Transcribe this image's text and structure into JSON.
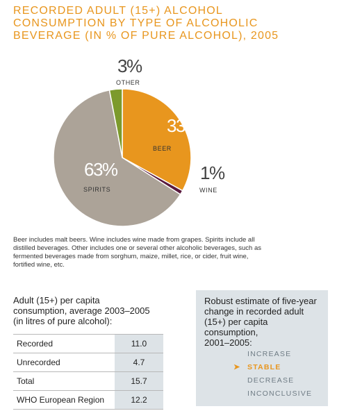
{
  "title_lines": [
    "RECORDED ADULT (15+) ALCOHOL",
    "CONSUMPTION BY TYPE OF ALCOHOLIC",
    "BEVERAGE (IN % OF PURE ALCOHOL), 2005"
  ],
  "chart_data": {
    "type": "pie",
    "title": "RECORDED ADULT (15+) ALCOHOL CONSUMPTION BY TYPE OF ALCOHOLIC BEVERAGE (IN % OF PURE ALCOHOL), 2005",
    "slices": [
      {
        "label": "BEER",
        "value": 33,
        "display": "33%",
        "color": "#e8961e"
      },
      {
        "label": "WINE",
        "value": 1,
        "display": "1%",
        "color": "#5a1a3e"
      },
      {
        "label": "SPIRITS",
        "value": 63,
        "display": "63%",
        "color": "#aca398"
      },
      {
        "label": "OTHER",
        "value": 3,
        "display": "3%",
        "color": "#7c9a2c"
      }
    ],
    "start_angle_deg": 0,
    "direction": "clockwise"
  },
  "note": "Beer includes malt beers. Wine includes wine made from grapes. Spirits include all distilled beverages. Other includes one or several other alcoholic beverages, such as fermented beverages made from sorghum, maize, millet, rice, or cider, fruit wine, fortified wine, etc.",
  "average": {
    "heading_lines": [
      "Adult (15+) per capita",
      "consumption, average 2003–2005",
      "(in litres of pure alcohol):"
    ],
    "rows": [
      {
        "label": "Recorded",
        "value": "11.0"
      },
      {
        "label": "Unrecorded",
        "value": "4.7"
      },
      {
        "label": "Total",
        "value": "15.7"
      },
      {
        "label": "WHO European Region",
        "value": "12.2"
      }
    ]
  },
  "estimate": {
    "heading_lines": [
      "Robust estimate of five-year",
      "change in recorded adult",
      "(15+) per capita consumption,",
      "2001–2005:"
    ],
    "options": [
      {
        "label": "INCREASE",
        "selected": false
      },
      {
        "label": "STABLE",
        "selected": true
      },
      {
        "label": "DECREASE",
        "selected": false
      },
      {
        "label": "INCONCLUSIVE",
        "selected": false
      }
    ],
    "selected_marker": "➤",
    "colors": {
      "selected": "#e8961e",
      "unselected": "#6f7c85",
      "panel": "#dde3e7"
    }
  }
}
